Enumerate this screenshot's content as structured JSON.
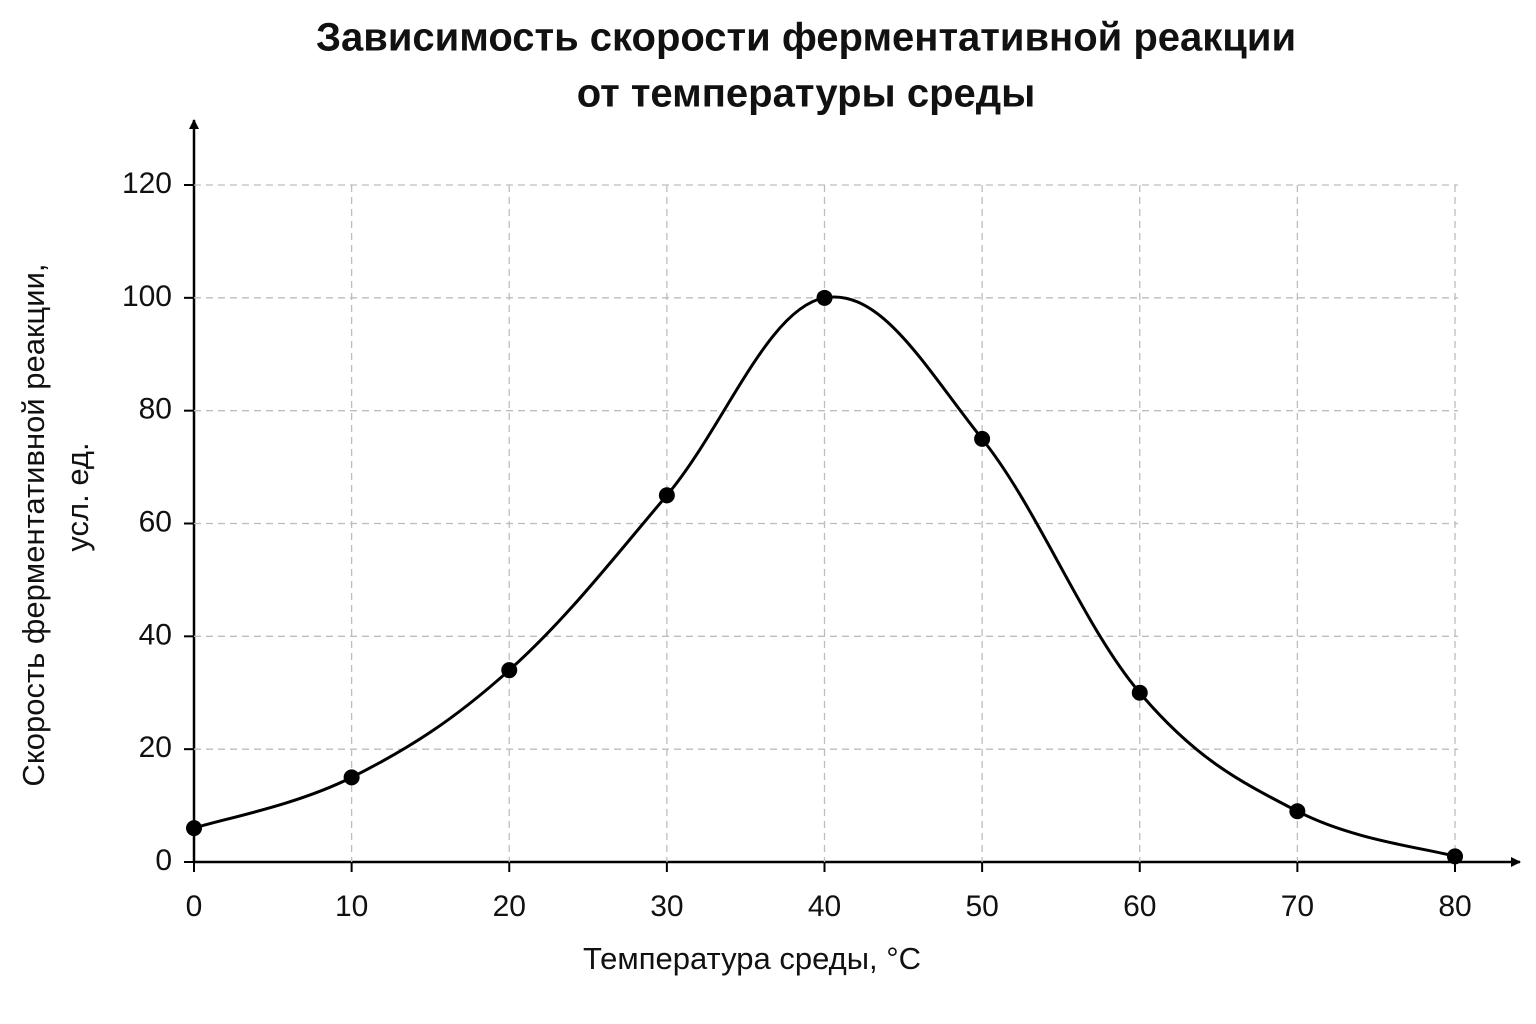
{
  "chart_data": {
    "type": "line",
    "title": [
      "Зависимость скорости ферментативной реакции",
      "от температуры среды"
    ],
    "x_label": "Температура среды, °C",
    "y_label": [
      "Скорость ферментативной реакции,",
      "усл. ед."
    ],
    "x": [
      0,
      10,
      20,
      30,
      40,
      50,
      60,
      70,
      80
    ],
    "series": [
      {
        "color": "#000000",
        "values": [
          6,
          15,
          34,
          65,
          100,
          75,
          30,
          9,
          1
        ]
      }
    ],
    "xlim": [
      0,
      80
    ],
    "xticks": [
      0,
      10,
      20,
      30,
      40,
      50,
      60,
      70,
      80
    ],
    "ylim": [
      0,
      120
    ],
    "yticks": [
      0,
      20,
      40,
      60,
      80,
      100,
      120
    ],
    "grid": true
  }
}
